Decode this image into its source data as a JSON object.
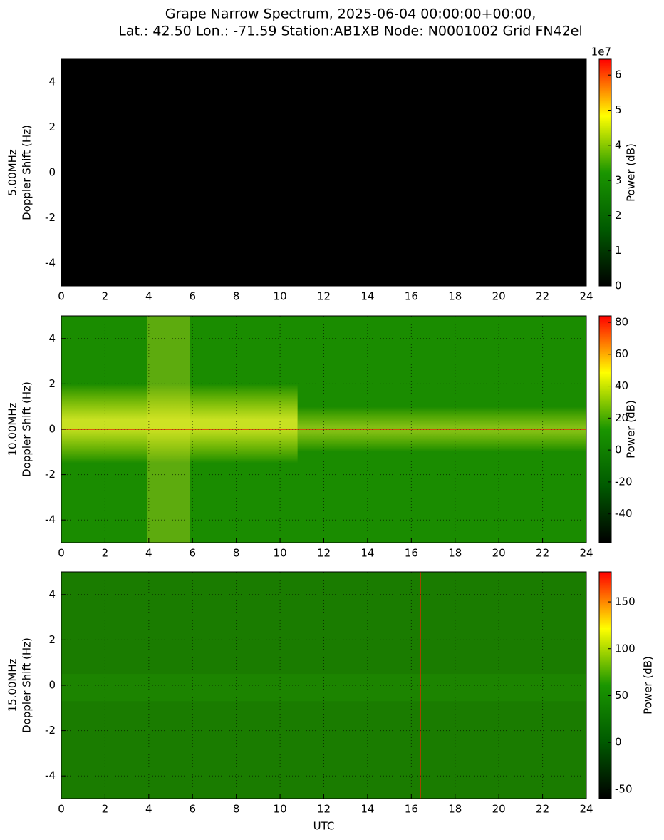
{
  "figure": {
    "title": "Grape Narrow Spectrum, 2025-06-04 00:00:00+00:00,",
    "subtitle": "Lat.: 42.50 Lon.: -71.59 Station:AB1XB Node: N0001002 Grid FN42el"
  },
  "chart_data": [
    {
      "type": "heatmap",
      "frequency_label": "5.00MHz",
      "ylabel": "Doppler Shift (Hz)",
      "xlim": [
        0,
        24
      ],
      "xticks": [
        0,
        2,
        4,
        6,
        8,
        10,
        12,
        14,
        16,
        18,
        20,
        22,
        24
      ],
      "ylim": [
        -5,
        5
      ],
      "yticks": [
        -4,
        -2,
        0,
        2,
        4
      ],
      "grid": true,
      "colormap": [
        "#000000",
        "#005a00",
        "#1a9600",
        "#ffff00",
        "#ff0000"
      ],
      "colorbar": {
        "label": "Power (dB)",
        "lim": [
          0,
          64500000
        ],
        "offset_label": "1e7",
        "ticks": [
          {
            "value": 0,
            "label": "0"
          },
          {
            "value": 10000000,
            "label": "1"
          },
          {
            "value": 20000000,
            "label": "2"
          },
          {
            "value": 30000000,
            "label": "3"
          },
          {
            "value": 40000000,
            "label": "4"
          },
          {
            "value": 50000000,
            "label": "5"
          },
          {
            "value": 60000000,
            "label": "6"
          }
        ]
      }
    },
    {
      "type": "heatmap",
      "frequency_label": "10.00MHz",
      "ylabel": "Doppler Shift (Hz)",
      "xlim": [
        0,
        24
      ],
      "xticks": [
        0,
        2,
        4,
        6,
        8,
        10,
        12,
        14,
        16,
        18,
        20,
        22,
        24
      ],
      "ylim": [
        -5,
        5
      ],
      "yticks": [
        -4,
        -2,
        0,
        2,
        4
      ],
      "grid": true,
      "colormap": [
        "#000000",
        "#005a00",
        "#1a9600",
        "#ffff00",
        "#ff0000"
      ],
      "colorbar": {
        "label": "Power (dB)",
        "lim": [
          -58,
          84
        ],
        "ticks": [
          -40,
          -20,
          0,
          20,
          40,
          60,
          80
        ]
      }
    },
    {
      "type": "heatmap",
      "frequency_label": "15.00MHz",
      "ylabel": "Doppler Shift (Hz)",
      "xlabel": "UTC",
      "xlim": [
        0,
        24
      ],
      "xticks": [
        0,
        2,
        4,
        6,
        8,
        10,
        12,
        14,
        16,
        18,
        20,
        22,
        24
      ],
      "ylim": [
        -5,
        5
      ],
      "yticks": [
        -4,
        -2,
        0,
        2,
        4
      ],
      "grid": true,
      "colormap": [
        "#000000",
        "#005a00",
        "#1a9600",
        "#ffff00",
        "#ff0000"
      ],
      "colorbar": {
        "label": "Power (dB)",
        "lim": [
          -60,
          182
        ],
        "ticks": [
          -50,
          0,
          50,
          100,
          150
        ]
      }
    }
  ]
}
